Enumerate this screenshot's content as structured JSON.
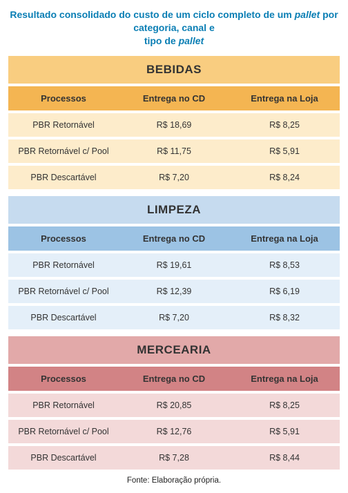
{
  "title_line1": "Resultado consolidado do custo de um ciclo completo de um ",
  "title_italic1": "pallet",
  "title_mid": " por categoria, canal e",
  "title_line2_prefix": "tipo de ",
  "title_italic2": "pallet",
  "source": "Fonte: Elaboração própria.",
  "common": {
    "col_processos": "Processos",
    "col_cd": "Entrega no CD",
    "col_loja": "Entrega na Loja",
    "row0_label": "PBR Retornável",
    "row1_label": "PBR Retornável c/ Pool",
    "row2_label": "PBR Descartável"
  },
  "categories": [
    {
      "name": "BEBIDAS",
      "colors": {
        "header_bg": "#f9cd80",
        "header_text": "#333333",
        "colhead_bg": "#f4b552",
        "colhead_text": "#333333",
        "row_bg": "#fdeccb",
        "row_text": "#333333"
      },
      "rows": [
        {
          "cd": "R$ 18,69",
          "loja": "R$ 8,25"
        },
        {
          "cd": "R$ 11,75",
          "loja": "R$ 5,91"
        },
        {
          "cd": "R$ 7,20",
          "loja": "R$ 8,24"
        }
      ]
    },
    {
      "name": "LIMPEZA",
      "colors": {
        "header_bg": "#c6dbef",
        "header_text": "#333333",
        "colhead_bg": "#9cc3e4",
        "colhead_text": "#333333",
        "row_bg": "#e4eff9",
        "row_text": "#333333"
      },
      "rows": [
        {
          "cd": "R$ 19,61",
          "loja": "R$ 8,53"
        },
        {
          "cd": "R$ 12,39",
          "loja": "R$ 6,19"
        },
        {
          "cd": "R$ 7,20",
          "loja": "R$ 8,32"
        }
      ]
    },
    {
      "name": "MERCEARIA",
      "colors": {
        "header_bg": "#e2a9a9",
        "header_text": "#333333",
        "colhead_bg": "#d28385",
        "colhead_text": "#333333",
        "row_bg": "#f3d9d9",
        "row_text": "#333333"
      },
      "rows": [
        {
          "cd": "R$ 20,85",
          "loja": "R$ 8,25"
        },
        {
          "cd": "R$ 12,76",
          "loja": "R$ 5,91"
        },
        {
          "cd": "R$ 7,28",
          "loja": "R$ 8,44"
        }
      ]
    }
  ]
}
